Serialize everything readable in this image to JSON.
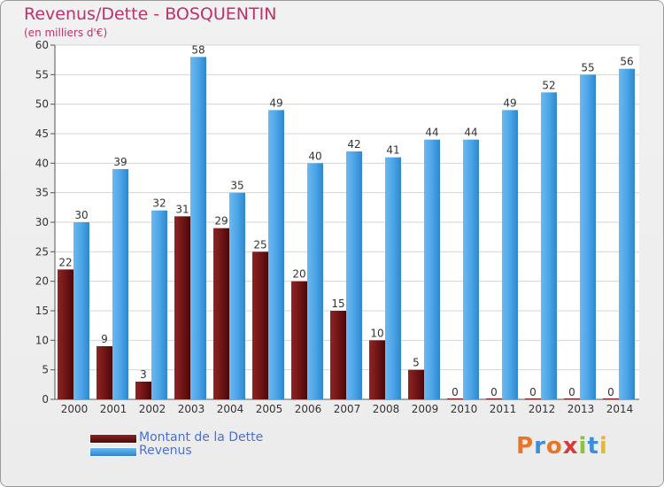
{
  "chart_data": {
    "type": "bar",
    "title": "Revenus/Dette - BOSQUENTIN",
    "subtitle": "(en milliers d'€)",
    "xlabel": "",
    "ylabel": "",
    "ylim": [
      0,
      60
    ],
    "yticks": [
      0,
      5,
      10,
      15,
      20,
      25,
      30,
      35,
      40,
      45,
      50,
      55,
      60
    ],
    "grid": true,
    "legend_position": "bottom-left",
    "categories": [
      "2000",
      "2001",
      "2002",
      "2003",
      "2004",
      "2005",
      "2006",
      "2007",
      "2008",
      "2009",
      "2010",
      "2011",
      "2012",
      "2013",
      "2014"
    ],
    "series": [
      {
        "name": "Montant de la Dette",
        "color": "#7a1a1a",
        "values": [
          22,
          9,
          3,
          31,
          29,
          25,
          20,
          15,
          10,
          5,
          0,
          0,
          0,
          0,
          0
        ]
      },
      {
        "name": "Revenus",
        "color": "#4aa3e6",
        "values": [
          30,
          39,
          32,
          58,
          35,
          49,
          40,
          42,
          41,
          44,
          44,
          49,
          52,
          55,
          56
        ]
      }
    ]
  },
  "logo": {
    "text": "Proxiti",
    "letter_colors": [
      "#e8762a",
      "#3c8fd6",
      "#e8762a",
      "#d63c3c",
      "#8ac43c",
      "#3c8fd6",
      "#e8b82a"
    ]
  }
}
